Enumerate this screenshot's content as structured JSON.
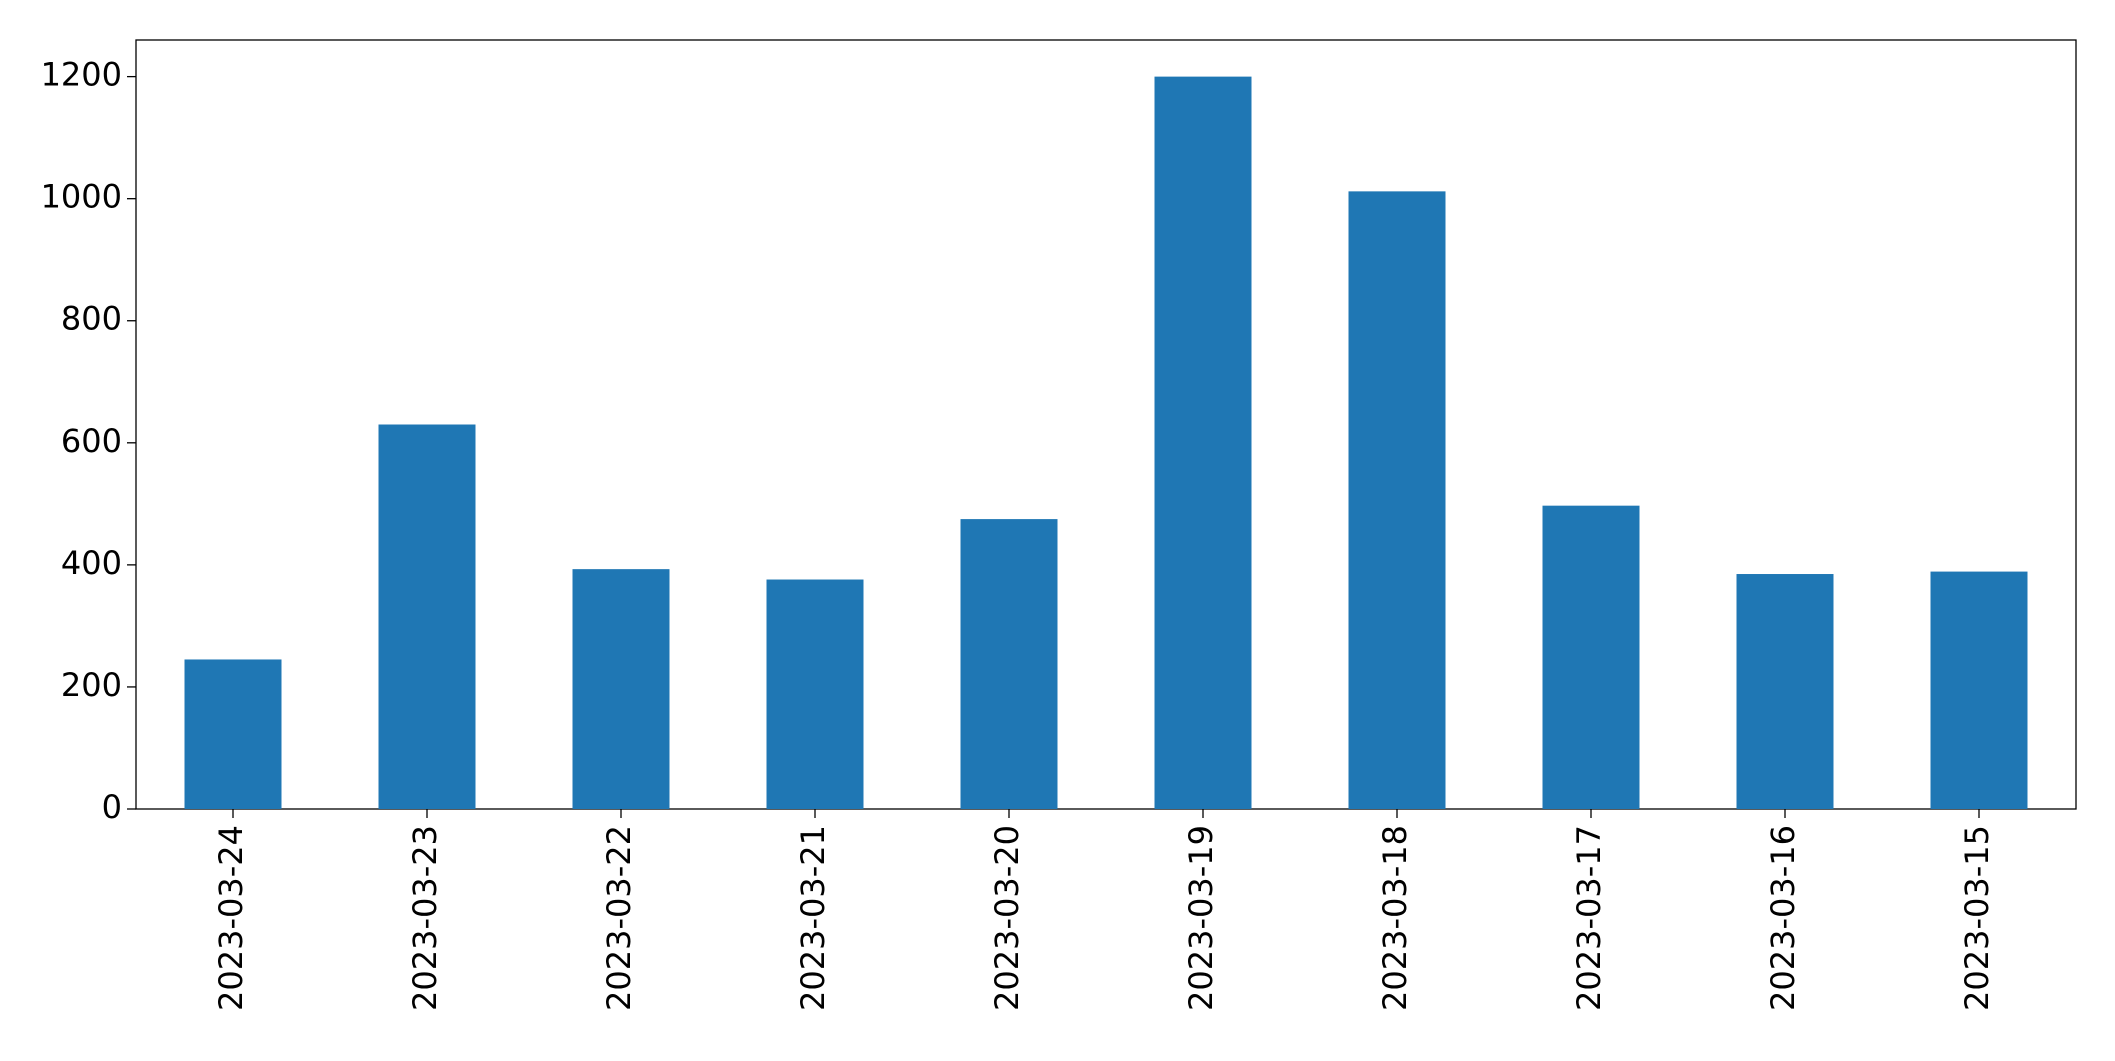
{
  "chart_data": {
    "type": "bar",
    "categories": [
      "2023-03-24",
      "2023-03-23",
      "2023-03-22",
      "2023-03-21",
      "2023-03-20",
      "2023-03-19",
      "2023-03-18",
      "2023-03-17",
      "2023-03-16",
      "2023-03-15"
    ],
    "values": [
      245,
      630,
      393,
      376,
      475,
      1200,
      1012,
      497,
      385,
      389
    ],
    "color": "#1f77b4",
    "ylim": [
      0,
      1260
    ],
    "yticks": [
      0,
      200,
      400,
      600,
      800,
      1000,
      1200
    ],
    "grid": false
  }
}
